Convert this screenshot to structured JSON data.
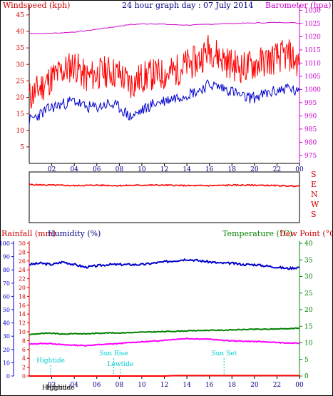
{
  "chart_data": [
    {
      "type": "line",
      "title": "24 hour graph day : 07 July 2014",
      "ylabel_left": "Windspeed (kph)",
      "ylabel_right": "Barometer (hpa)",
      "x_ticks": [
        "02",
        "04",
        "06",
        "08",
        "10",
        "12",
        "14",
        "16",
        "18",
        "20",
        "22",
        "00"
      ],
      "y_left_ticks": [
        "5",
        "10",
        "15",
        "20",
        "25",
        "30",
        "35",
        "40",
        "45"
      ],
      "y_right_ticks": [
        "975",
        "980",
        "985",
        "990",
        "995",
        "1000",
        "1005",
        "1010",
        "1015",
        "1020",
        "1025",
        "1030"
      ],
      "ylim_left": [
        0,
        48
      ],
      "ylim_right": [
        972,
        1032
      ],
      "x_range_hours": [
        0,
        24
      ],
      "series": [
        {
          "name": "Barometer (hpa)",
          "axis": "right",
          "color": "#cc00cc",
          "x": [
            0,
            1,
            2,
            3,
            4,
            5,
            6,
            7,
            8,
            9,
            10,
            11,
            12,
            13,
            14,
            15,
            16,
            17,
            18,
            19,
            20,
            21,
            22,
            23,
            24
          ],
          "values": [
            1021.2,
            1021.2,
            1021.3,
            1021.5,
            1021.8,
            1022.2,
            1022.8,
            1023.4,
            1024.0,
            1024.6,
            1024.8,
            1024.9,
            1024.7,
            1024.5,
            1024.4,
            1024.5,
            1024.7,
            1024.9,
            1025.0,
            1025.1,
            1025.2,
            1025.3,
            1025.4,
            1025.4,
            1025.1
          ]
        },
        {
          "name": "Wind gust (kph)",
          "axis": "left",
          "color": "#ff0000",
          "x": [
            0,
            1,
            2,
            3,
            4,
            5,
            6,
            7,
            8,
            9,
            10,
            11,
            12,
            13,
            14,
            15,
            16,
            17,
            18,
            19,
            20,
            21,
            22,
            23,
            24
          ],
          "values": [
            20,
            23,
            26,
            28,
            30,
            26,
            27,
            28,
            27,
            24,
            26,
            27,
            27,
            28,
            30,
            31,
            35,
            32,
            30,
            29,
            30,
            31,
            32,
            33,
            30
          ]
        },
        {
          "name": "Wind speed (kph)",
          "axis": "left",
          "color": "#0000cc",
          "x": [
            0,
            1,
            2,
            3,
            4,
            5,
            6,
            7,
            8,
            9,
            10,
            11,
            12,
            13,
            14,
            15,
            16,
            17,
            18,
            19,
            20,
            21,
            22,
            23,
            24
          ],
          "values": [
            13,
            15,
            17,
            18,
            19,
            17,
            17,
            18,
            17,
            14,
            16,
            18,
            19,
            20,
            21,
            22,
            24,
            23,
            22,
            20,
            20,
            21,
            22,
            23,
            21
          ]
        }
      ]
    },
    {
      "type": "line",
      "ylabel_right": [
        "S",
        "E",
        "N",
        "W",
        "S"
      ],
      "x_range_hours": [
        0,
        24
      ],
      "series": [
        {
          "name": "Wind direction",
          "color": "#ff0000",
          "x": [
            0,
            2,
            4,
            6,
            8,
            10,
            12,
            14,
            16,
            18,
            20,
            22,
            24
          ],
          "values": [
            0.75,
            0.74,
            0.73,
            0.74,
            0.73,
            0.74,
            0.74,
            0.73,
            0.73,
            0.74,
            0.74,
            0.73,
            0.72
          ]
        }
      ]
    },
    {
      "type": "line",
      "ylabel_rain": "Rainfall (mm)",
      "ylabel_humidity": "Humidity (%)",
      "ylabel_temp": "Temperature (°C)",
      "ylabel_dew": "Dew Point (°C)",
      "humidity_ticks": [
        "0",
        "10",
        "20",
        "30",
        "40",
        "50",
        "60",
        "70",
        "80",
        "90",
        "100"
      ],
      "rain_ticks": [
        "0",
        "2",
        "4",
        "6",
        "8",
        "10",
        "12",
        "14",
        "16",
        "18",
        "20",
        "22",
        "24",
        "26",
        "28",
        "30"
      ],
      "temp_ticks": [
        "0",
        "5",
        "10",
        "15",
        "20",
        "25",
        "30",
        "35",
        "40"
      ],
      "x_ticks": [
        "02",
        "04",
        "06",
        "08",
        "10",
        "12",
        "14",
        "16",
        "18",
        "20",
        "22",
        "00"
      ],
      "humidity_range": [
        0,
        100
      ],
      "rain_range": [
        0,
        30
      ],
      "temp_range": [
        0,
        40
      ],
      "x_range_hours": [
        0,
        24
      ],
      "series": [
        {
          "name": "Humidity (%)",
          "axis": "humidity",
          "color": "#0000cc",
          "x": [
            0,
            1,
            2,
            3,
            4,
            5,
            6,
            7,
            8,
            9,
            10,
            11,
            12,
            13,
            14,
            15,
            16,
            17,
            18,
            19,
            20,
            21,
            22,
            23,
            24
          ],
          "values": [
            84,
            85,
            84,
            86,
            84,
            82,
            83,
            84,
            84,
            84,
            84,
            85,
            86,
            87,
            88,
            87,
            86,
            85,
            85,
            84,
            84,
            83,
            82,
            81,
            82
          ]
        },
        {
          "name": "Temperature (°C)",
          "axis": "temp",
          "color": "#008000",
          "x": [
            0,
            1,
            2,
            3,
            4,
            5,
            6,
            7,
            8,
            9,
            10,
            11,
            12,
            13,
            14,
            15,
            16,
            17,
            18,
            19,
            20,
            21,
            22,
            23,
            24
          ],
          "values": [
            12.5,
            12.8,
            12.9,
            12.6,
            12.8,
            12.7,
            12.9,
            13.0,
            13.0,
            13.1,
            13.2,
            13.3,
            13.4,
            13.5,
            13.6,
            13.7,
            13.8,
            13.8,
            13.9,
            14.0,
            14.1,
            14.1,
            14.2,
            14.3,
            14.4
          ]
        },
        {
          "name": "Dew Point (°C)",
          "axis": "temp",
          "color": "#ff00ff",
          "x": [
            0,
            1,
            2,
            3,
            4,
            5,
            6,
            7,
            8,
            9,
            10,
            11,
            12,
            13,
            14,
            15,
            16,
            17,
            18,
            19,
            20,
            21,
            22,
            23,
            24
          ],
          "values": [
            9.6,
            9.8,
            9.8,
            9.4,
            9.3,
            9.2,
            9.4,
            9.6,
            9.8,
            10.1,
            10.3,
            10.5,
            10.8,
            11.1,
            11.3,
            11.2,
            11.1,
            10.8,
            10.6,
            10.5,
            10.4,
            10.3,
            10.1,
            9.9,
            9.9
          ]
        },
        {
          "name": "Rainfall (mm)",
          "axis": "rain",
          "color": "#ff0000",
          "x": [
            0,
            12,
            13,
            24
          ],
          "values": [
            0,
            0,
            0.1,
            0.1
          ]
        }
      ],
      "annotations": [
        {
          "label": "Hightide",
          "hour": 1.9,
          "color": "#00cccc"
        },
        {
          "label": "Sun Rise",
          "hour": 7.5,
          "color": "#00cccc"
        },
        {
          "label": "Lowtide",
          "hour": 8.1,
          "color": "#00cccc"
        },
        {
          "label": "Sun Set",
          "hour": 17.3,
          "color": "#00cccc"
        }
      ],
      "bottom_tide_labels": [
        "Hightide",
        "Hightide"
      ]
    }
  ]
}
